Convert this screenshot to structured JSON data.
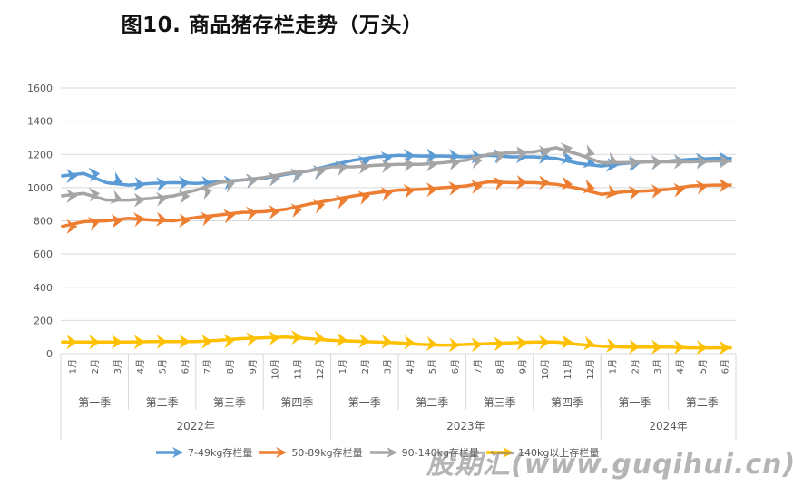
{
  "title": "图10. 商品猪存栏走势（万头）",
  "watermark": "股期汇(www.guqihui.cn)",
  "chart_data": {
    "type": "line",
    "title": "图10. 商品猪存栏走势（万头）",
    "xlabel": "",
    "ylabel": "",
    "ylim": [
      0,
      1600
    ],
    "yticks": [
      0,
      200,
      400,
      600,
      800,
      1000,
      1200,
      1400,
      1600
    ],
    "grid": true,
    "legend_position": "bottom",
    "categories": [
      "1月",
      "2月",
      "3月",
      "4月",
      "5月",
      "6月",
      "7月",
      "8月",
      "9月",
      "10月",
      "11月",
      "12月",
      "1月",
      "2月",
      "3月",
      "4月",
      "5月",
      "6月",
      "7月",
      "8月",
      "9月",
      "10月",
      "11月",
      "12月",
      "1月",
      "2月",
      "3月",
      "4月",
      "5月",
      "6月"
    ],
    "quarters": [
      {
        "label": "第一季",
        "span": 3
      },
      {
        "label": "第二季",
        "span": 3
      },
      {
        "label": "第三季",
        "span": 3
      },
      {
        "label": "第四季",
        "span": 3
      },
      {
        "label": "第一季",
        "span": 3
      },
      {
        "label": "第二季",
        "span": 3
      },
      {
        "label": "第三季",
        "span": 3
      },
      {
        "label": "第四季",
        "span": 3
      },
      {
        "label": "第一季",
        "span": 3
      },
      {
        "label": "第二季",
        "span": 3
      }
    ],
    "years": [
      {
        "label": "2022年",
        "span": 12
      },
      {
        "label": "2023年",
        "span": 12
      },
      {
        "label": "2024年",
        "span": 6
      }
    ],
    "series": [
      {
        "name": "7-49kg存栏量",
        "color": "#5B9BD5",
        "values": [
          1070,
          1085,
          1030,
          1015,
          1025,
          1030,
          1025,
          1035,
          1045,
          1055,
          1080,
          1100,
          1135,
          1165,
          1185,
          1195,
          1190,
          1190,
          1185,
          1195,
          1185,
          1185,
          1175,
          1145,
          1130,
          1145,
          1155,
          1160,
          1170,
          1175
        ]
      },
      {
        "name": "50-89kg存栏量",
        "color": "#ED7D31",
        "values": [
          765,
          795,
          800,
          815,
          805,
          800,
          820,
          835,
          850,
          855,
          870,
          900,
          925,
          950,
          970,
          985,
          990,
          1000,
          1010,
          1035,
          1030,
          1030,
          1020,
          995,
          960,
          975,
          980,
          990,
          1010,
          1015
        ]
      },
      {
        "name": "90-140kg存栏量",
        "color": "#A5A5A5",
        "values": [
          950,
          965,
          925,
          925,
          935,
          950,
          985,
          1030,
          1045,
          1060,
          1085,
          1100,
          1125,
          1125,
          1135,
          1140,
          1140,
          1150,
          1165,
          1200,
          1210,
          1215,
          1240,
          1200,
          1150,
          1150,
          1155,
          1155,
          1155,
          1160
        ]
      },
      {
        "name": "140kg以上存栏量",
        "color": "#FFC000",
        "values": [
          70,
          70,
          70,
          70,
          72,
          72,
          72,
          80,
          90,
          95,
          100,
          90,
          80,
          75,
          70,
          65,
          55,
          50,
          55,
          60,
          65,
          70,
          70,
          55,
          45,
          40,
          40,
          40,
          35,
          35
        ]
      }
    ]
  }
}
